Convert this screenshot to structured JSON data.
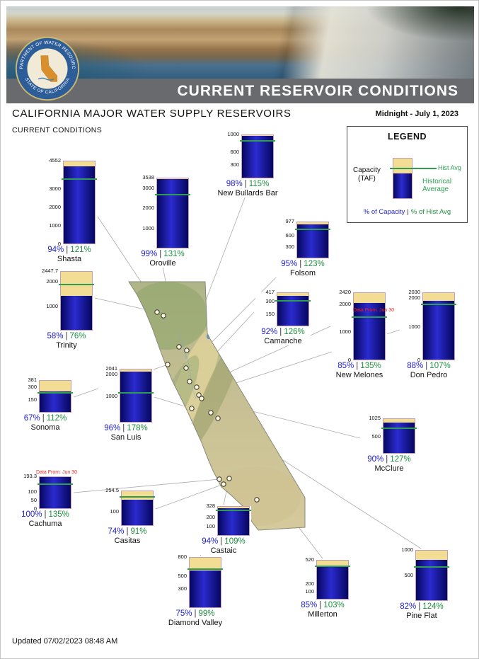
{
  "header": {
    "banner_title": "CURRENT RESERVOIR CONDITIONS",
    "logo": {
      "top_text": "DEPARTMENT OF WATER RESOURCES",
      "bottom_text": "STATE OF CALIFORNIA"
    }
  },
  "page": {
    "title": "CALIFORNIA MAJOR WATER SUPPLY RESERVOIRS",
    "date_label": "Midnight - July 1, 2023",
    "subtitle": "CURRENT CONDITIONS",
    "updated_label": "Updated 07/02/2023 08:48 AM"
  },
  "legend": {
    "title": "LEGEND",
    "capacity_label": "Capacity\n(TAF)",
    "hist_avg_label": "Hist Avg",
    "historical_average_label": "Historical Average",
    "footer_capacity": "% of Capacity",
    "footer_sep": "|",
    "footer_hist": "% of Hist Avg"
  },
  "colors": {
    "capacity_bg": "#f3dd95",
    "bar_blue": "#2b2bd0",
    "bar_blue_dark": "#06065f",
    "hist_avg_green": "#2f9e53",
    "pct_capacity_blue": "#2222cc",
    "pct_hist_green": "#1e8e3e",
    "note_red": "#ff2020"
  },
  "chart_data": {
    "type": "bar",
    "title": "CALIFORNIA MAJOR WATER SUPPLY RESERVOIRS",
    "subtitle": "CURRENT CONDITIONS",
    "as_of": "Midnight - July 1, 2023",
    "units": "TAF",
    "pct_separator": "|",
    "reservoirs": [
      {
        "name": "Shasta",
        "capacity": 4552,
        "ticks": [
          4552,
          3000,
          2000,
          1000,
          0
        ],
        "pct_of_capacity": 94,
        "pct_of_hist_avg": 121
      },
      {
        "name": "Oroville",
        "capacity": 3538,
        "ticks": [
          3538,
          3000,
          2000,
          1000
        ],
        "pct_of_capacity": 99,
        "pct_of_hist_avg": 131
      },
      {
        "name": "New Bullards Bar",
        "capacity": 1000,
        "ticks": [
          1000,
          600,
          300
        ],
        "pct_of_capacity": 98,
        "pct_of_hist_avg": 115
      },
      {
        "name": "Folsom",
        "capacity": 977,
        "ticks": [
          977,
          600,
          300
        ],
        "pct_of_capacity": 95,
        "pct_of_hist_avg": 123
      },
      {
        "name": "Trinity",
        "capacity": 2447.7,
        "ticks": [
          2447.7,
          2000,
          1000
        ],
        "pct_of_capacity": 58,
        "pct_of_hist_avg": 76
      },
      {
        "name": "Camanche",
        "capacity": 417,
        "ticks": [
          417,
          300,
          150
        ],
        "pct_of_capacity": 92,
        "pct_of_hist_avg": 126
      },
      {
        "name": "New Melones",
        "capacity": 2420,
        "ticks": [
          2420,
          2000,
          1000,
          0
        ],
        "pct_of_capacity": 85,
        "pct_of_hist_avg": 135,
        "note": "Data From: Jun 30"
      },
      {
        "name": "Don Pedro",
        "capacity": 2030,
        "ticks": [
          2030,
          2000,
          1000,
          0
        ],
        "pct_of_capacity": 88,
        "pct_of_hist_avg": 107
      },
      {
        "name": "Sonoma",
        "capacity": 381,
        "ticks": [
          381,
          300,
          150
        ],
        "pct_of_capacity": 67,
        "pct_of_hist_avg": 112
      },
      {
        "name": "San Luis",
        "capacity": 2041,
        "ticks": [
          2041,
          2000,
          1000
        ],
        "pct_of_capacity": 96,
        "pct_of_hist_avg": 178
      },
      {
        "name": "McClure",
        "capacity": 1025,
        "ticks": [
          1025,
          500
        ],
        "pct_of_capacity": 90,
        "pct_of_hist_avg": 127
      },
      {
        "name": "Cachuma",
        "capacity": 193.3,
        "ticks": [
          193.3,
          100,
          50,
          0
        ],
        "pct_of_capacity": 100,
        "pct_of_hist_avg": 135,
        "note": "Data From: Jun 30"
      },
      {
        "name": "Casitas",
        "capacity": 254.5,
        "ticks": [
          254.5,
          100
        ],
        "pct_of_capacity": 74,
        "pct_of_hist_avg": 91
      },
      {
        "name": "Castaic",
        "capacity": 328,
        "ticks": [
          328,
          200,
          100
        ],
        "pct_of_capacity": 94,
        "pct_of_hist_avg": 109
      },
      {
        "name": "Diamond Valley",
        "capacity": 800,
        "ticks": [
          800,
          500,
          300
        ],
        "pct_of_capacity": 75,
        "pct_of_hist_avg": 99
      },
      {
        "name": "Millerton",
        "capacity": 520,
        "ticks": [
          520,
          200,
          100
        ],
        "pct_of_capacity": 85,
        "pct_of_hist_avg": 103
      },
      {
        "name": "Pine Flat",
        "capacity": 1000,
        "ticks": [
          1000,
          500
        ],
        "pct_of_capacity": 82,
        "pct_of_hist_avg": 124
      }
    ]
  }
}
